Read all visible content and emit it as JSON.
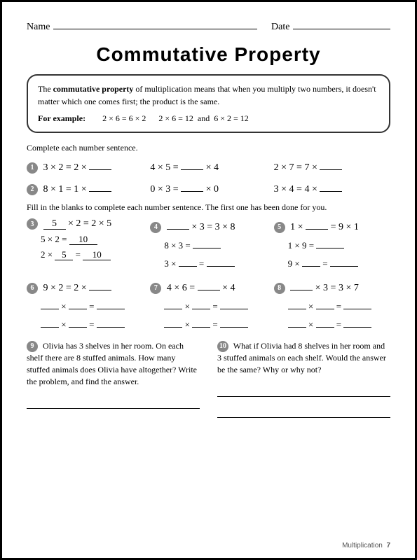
{
  "header": {
    "name_label": "Name",
    "date_label": "Date"
  },
  "title": "Commutative Property",
  "definition": {
    "intro_pre": "The ",
    "bold_term": "commutative property",
    "intro_post": " of multiplication means that when you multiply two numbers, it doesn't matter which one comes first; the product is the same.",
    "example_label": "For example:",
    "example_text": "2 × 6 = 6 × 2      2 × 6 = 12  and  6 × 2 = 12"
  },
  "instr1": "Complete each number sentence.",
  "row1": {
    "a_pre": "3 × 2 = 2 ×",
    "b_pre": "4 × 5 =",
    "b_post": "× 4",
    "c_pre": "2 × 7 = 7 ×"
  },
  "row2": {
    "a_pre": "8 × 1 = 1 ×",
    "b_pre": "0 × 3 =",
    "b_post": "× 0",
    "c_pre": "3 × 4 = 4 ×"
  },
  "instr2": "Fill in the blanks to complete each number sentence. The first one has been done for you.",
  "p3": {
    "fill": "5",
    "post": "× 2 = 2 × 5",
    "line2_pre": "5 × 2 =",
    "line2_fill": "10",
    "line3_pre": "2 ×",
    "line3_fill1": "5",
    "line3_mid": "=",
    "line3_fill2": "10"
  },
  "p4": {
    "post": "× 3 = 3 × 8",
    "line2_pre": "8 × 3 =",
    "line3_pre": "3 ×",
    "line3_mid": "="
  },
  "p5": {
    "pre": "1 ×",
    "post": "= 9 × 1",
    "line2_pre": "1 × 9 =",
    "line3_pre": "9 ×",
    "line3_mid": "="
  },
  "p6": {
    "pre": "9 × 2 = 2 ×"
  },
  "p7": {
    "pre": "4 × 6 =",
    "post": "× 4"
  },
  "p8": {
    "post": "× 3 = 3 × 7"
  },
  "generic": {
    "times": "×",
    "eq": "="
  },
  "p9": {
    "text": "Olivia has 3 shelves in her room. On each shelf there are 8 stuffed animals. How many stuffed animals does Olivia have altogether? Write the problem, and find the answer."
  },
  "p10": {
    "text": "What if Olivia had 8 shelves in her room and 3 stuffed animals on each shelf. Would the answer be the same? Why or why not?"
  },
  "footer": {
    "section": "Multiplication",
    "page": "7"
  },
  "bullets": {
    "b1": "1",
    "b2": "2",
    "b3": "3",
    "b4": "4",
    "b5": "5",
    "b6": "6",
    "b7": "7",
    "b8": "8",
    "b9": "9",
    "b10": "10"
  }
}
